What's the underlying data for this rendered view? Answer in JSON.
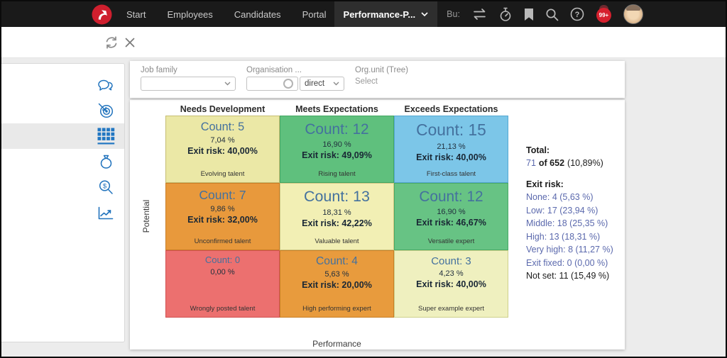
{
  "nav": {
    "items": [
      "Start",
      "Employees",
      "Candidates",
      "Portal"
    ],
    "active": {
      "label": "Performance-P..."
    },
    "truncated_label": "Bu:",
    "notification_badge": "99+",
    "icon_names": [
      "transfer-icon",
      "timer-icon",
      "bookmark-icon",
      "search-icon",
      "help-icon",
      "notifications-bell-icon",
      "user-avatar"
    ]
  },
  "toolbar": {
    "icon_names": [
      "refresh-icon",
      "close-icon"
    ]
  },
  "sidebar": {
    "icon_names": [
      "chat-icon",
      "target-icon",
      "grid-icon",
      "money-bag-icon",
      "salary-search-icon",
      "trend-chart-icon"
    ],
    "active_index": 2
  },
  "filters": {
    "job_family": {
      "label": "Job family",
      "value": ""
    },
    "organisation": {
      "label": "Organisation ...",
      "value": "",
      "mode_value": "direct"
    },
    "org_unit": {
      "label": "Org.unit (Tree)",
      "value": "Select"
    }
  },
  "matrix": {
    "x_axis_label": "Performance",
    "y_axis_label": "Potential",
    "column_headers": [
      "Needs Development",
      "Meets Expectations",
      "Exceeds Expectations"
    ],
    "count_text_color": "#44719e",
    "cells": [
      [
        {
          "count": 5,
          "count_label": "Count: 5",
          "percent": "7,04 %",
          "exit_risk": "Exit risk: 40,00%",
          "tag": "Evolving talent",
          "bg": "#ebe8a6",
          "border": "#c6bd72"
        },
        {
          "count": 12,
          "count_label": "Count: 12",
          "percent": "16,90 %",
          "exit_risk": "Exit risk: 49,09%",
          "tag": "Rising talent",
          "bg": "#5fc07d",
          "border": "#43a763"
        },
        {
          "count": 15,
          "count_label": "Count: 15",
          "percent": "21,13 %",
          "exit_risk": "Exit risk: 40,00%",
          "tag": "First-class talent",
          "bg": "#7cc6e8",
          "border": "#55a8d2"
        }
      ],
      [
        {
          "count": 7,
          "count_label": "Count: 7",
          "percent": "9,86 %",
          "exit_risk": "Exit risk: 32,00%",
          "tag": "Unconfirmed talent",
          "bg": "#e8993c",
          "border": "#c87d26"
        },
        {
          "count": 13,
          "count_label": "Count: 13",
          "percent": "18,31 %",
          "exit_risk": "Exit risk: 42,22%",
          "tag": "Valuable talent",
          "bg": "#f2efb4",
          "border": "#cfc783"
        },
        {
          "count": 12,
          "count_label": "Count: 12",
          "percent": "16,90 %",
          "exit_risk": "Exit risk: 46,67%",
          "tag": "Versatile expert",
          "bg": "#67c384",
          "border": "#48a966"
        }
      ],
      [
        {
          "count": 0,
          "count_label": "Count: 0",
          "percent": "0,00 %",
          "exit_risk": "",
          "tag": "Wrongly posted talent",
          "bg": "#ec706f",
          "border": "#d15150"
        },
        {
          "count": 4,
          "count_label": "Count: 4",
          "percent": "5,63 %",
          "exit_risk": "Exit risk: 20,00%",
          "tag": "High performing expert",
          "bg": "#e89b3d",
          "border": "#c87f27"
        },
        {
          "count": 3,
          "count_label": "Count: 3",
          "percent": "4,23 %",
          "exit_risk": "Exit risk: 40,00%",
          "tag": "Super example expert",
          "bg": "#eff0bf",
          "border": "#ced08c"
        }
      ]
    ]
  },
  "stats": {
    "total_label": "Total:",
    "total": {
      "count": "71",
      "of": "of 652",
      "percent": "(10,89%)"
    },
    "exit_risk_label": "Exit risk:",
    "link_color": "#5b69ad",
    "items": [
      {
        "text": "None: 4 (5,63 %)",
        "link": true
      },
      {
        "text": "Low: 17 (23,94 %)",
        "link": true
      },
      {
        "text": "Middle: 18 (25,35 %)",
        "link": true
      },
      {
        "text": "High: 13 (18,31 %)",
        "link": true
      },
      {
        "text": "Very high: 8 (11,27 %)",
        "link": true
      },
      {
        "text": "Exit fixed: 0 (0,00 %)",
        "link": true
      },
      {
        "text": "Not set: 11 (15,49 %)",
        "link": false
      }
    ]
  }
}
